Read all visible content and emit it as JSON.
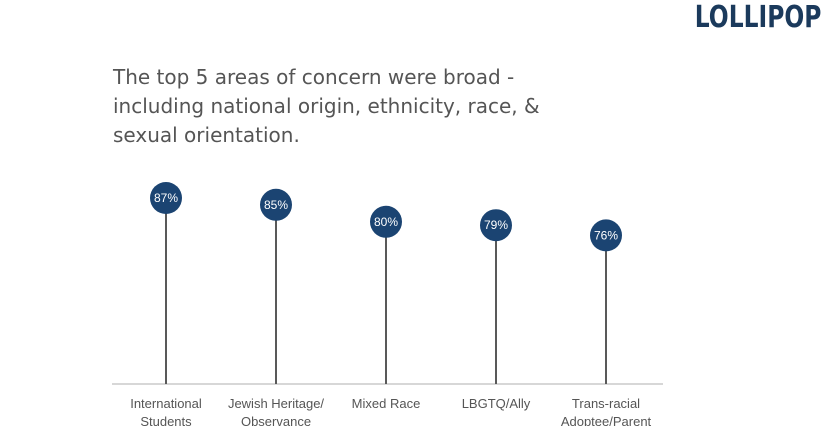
{
  "brand": {
    "logo_text": "LOLLIPOP"
  },
  "headline": "The top 5 areas of concern were broad - including national origin, ethnicity, race, & sexual orientation.",
  "chart_data": {
    "type": "lollipop",
    "categories": [
      [
        "International",
        "Students"
      ],
      [
        "Jewish Heritage/",
        "Observance"
      ],
      [
        "Mixed Race"
      ],
      [
        "LBGTQ/Ally"
      ],
      [
        "Trans-racial",
        "Adoptee/Parent"
      ]
    ],
    "values": [
      87,
      85,
      80,
      79,
      76
    ],
    "data_labels": [
      "87%",
      "85%",
      "80%",
      "79%",
      "76%"
    ],
    "unit": "%",
    "colors": {
      "marker": "#1b4472",
      "stem": "#595959",
      "axis": "#bfbfbf",
      "label": "#ffffff"
    },
    "grid": false,
    "legend": "none"
  }
}
